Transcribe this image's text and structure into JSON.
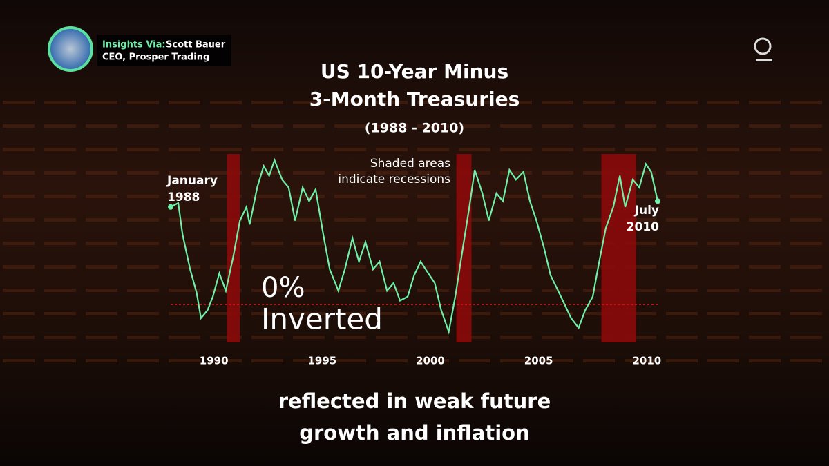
{
  "header": {
    "label": "Insights Via:",
    "name": "Scott Bauer",
    "role": "CEO, Prosper Trading"
  },
  "chart_data": {
    "type": "line",
    "title": [
      "US 10-Year Minus",
      "3-Month Treasuries"
    ],
    "subtitle": "(1988 - 2010)",
    "annotations": {
      "recession_note": [
        "Shaded areas",
        "indicate recessions"
      ],
      "start": [
        "January",
        "1988"
      ],
      "end": [
        "July",
        "2010"
      ],
      "inverted": "Inverted"
    },
    "x": [
      1988.0,
      1988.35,
      1988.55,
      1988.9,
      1989.2,
      1989.4,
      1989.7,
      1989.95,
      1990.25,
      1990.55,
      1990.9,
      1991.2,
      1991.5,
      1991.65,
      1992.0,
      1992.3,
      1992.55,
      1992.8,
      1993.15,
      1993.45,
      1993.75,
      1994.1,
      1994.4,
      1994.7,
      1995.05,
      1995.35,
      1995.75,
      1996.05,
      1996.4,
      1996.7,
      1997.0,
      1997.35,
      1997.65,
      1998.0,
      1998.3,
      1998.6,
      1998.95,
      1999.25,
      1999.55,
      1999.9,
      2000.2,
      2000.5,
      2000.85,
      2001.15,
      2001.5,
      2001.8,
      2002.05,
      2002.4,
      2002.7,
      2003.05,
      2003.35,
      2003.65,
      2003.95,
      2004.3,
      2004.6,
      2004.9,
      2005.25,
      2005.55,
      2005.9,
      2006.2,
      2006.5,
      2006.85,
      2007.15,
      2007.5,
      2007.8,
      2008.1,
      2008.45,
      2008.75,
      2009.0,
      2009.35,
      2009.65,
      2009.95,
      2010.2,
      2010.5
    ],
    "series": [
      {
        "color": "#6ff0a8",
        "values": [
          2.5,
          2.6,
          1.8,
          0.9,
          0.3,
          -0.35,
          -0.15,
          0.2,
          0.8,
          0.35,
          1.25,
          2.15,
          2.5,
          2.05,
          3.0,
          3.55,
          3.3,
          3.7,
          3.2,
          3.0,
          2.15,
          3.0,
          2.65,
          2.95,
          1.8,
          0.9,
          0.35,
          0.9,
          1.7,
          1.1,
          1.6,
          0.9,
          1.1,
          0.35,
          0.55,
          0.1,
          0.2,
          0.75,
          1.1,
          0.8,
          0.55,
          -0.15,
          -0.7,
          0.2,
          1.45,
          2.5,
          3.45,
          2.85,
          2.15,
          2.85,
          2.65,
          3.45,
          3.2,
          3.4,
          2.65,
          2.15,
          1.45,
          0.75,
          0.35,
          0.0,
          -0.35,
          -0.6,
          -0.15,
          0.2,
          1.1,
          1.95,
          2.5,
          3.3,
          2.5,
          3.2,
          3.0,
          3.6,
          3.4,
          2.65
        ]
      }
    ],
    "recessions": [
      [
        1990.6,
        1991.2
      ],
      [
        2001.2,
        2001.9
      ],
      [
        2007.9,
        2009.5
      ]
    ],
    "recession_color": "#8b0a0a",
    "xlim": [
      1988,
      2010.5
    ],
    "xticks": [
      1990,
      1995,
      2000,
      2005,
      2010
    ],
    "ylim": [
      -1,
      4
    ],
    "yticks": [
      {
        "value": 0,
        "label": "0%"
      }
    ],
    "zero_line_color": "#d42020"
  },
  "caption": [
    "reflected in weak future",
    "growth and inflation"
  ]
}
